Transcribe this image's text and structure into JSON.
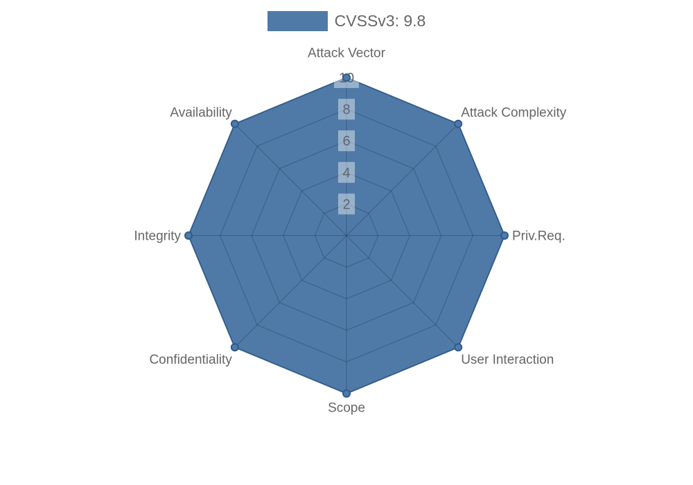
{
  "legend": {
    "label": "CVSSv3: 9.8"
  },
  "chart_data": {
    "type": "radar",
    "categories": [
      "Attack Vector",
      "Attack Complexity",
      "Priv.Req.",
      "User Interaction",
      "Scope",
      "Confidentiality",
      "Integrity",
      "Availability"
    ],
    "series": [
      {
        "name": "CVSSv3: 9.8",
        "values": [
          10,
          10,
          10,
          10,
          10,
          10,
          10,
          10
        ]
      }
    ],
    "axis_range": [
      0,
      10
    ],
    "ticks": [
      2,
      4,
      6,
      8,
      10
    ],
    "grid": true,
    "legend_position": "top",
    "colors": {
      "fill": "#4f7aa8",
      "series_edge": "#3c6b9e",
      "marker_fill": "#4f7aa8",
      "marker_stroke": "#2f5a8d",
      "grid_line": "rgba(28,48,68,0.28)",
      "tick_text": "#5d6772",
      "tick_backdrop": "rgba(255,255,255,0.42)",
      "axis_label_text": "#666666"
    }
  }
}
